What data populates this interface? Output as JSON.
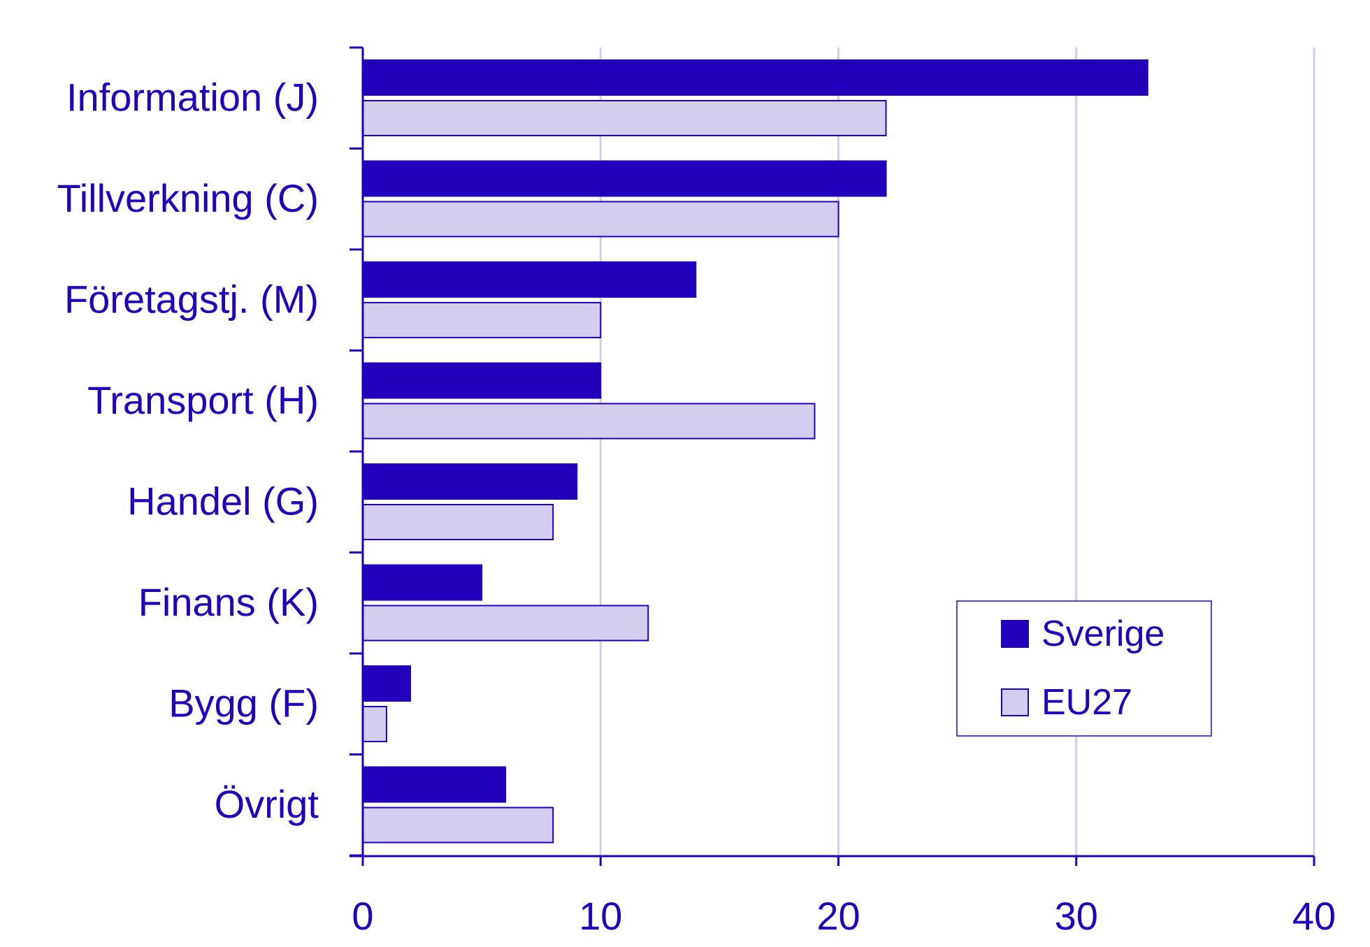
{
  "chart_data": {
    "type": "bar",
    "orientation": "horizontal",
    "categories": [
      "Information (J)",
      "Tillverkning (C)",
      "Företagstj. (M)",
      "Transport (H)",
      "Handel (G)",
      "Finans (K)",
      "Bygg (F)",
      "Övrigt"
    ],
    "series": [
      {
        "name": "Sverige",
        "values": [
          33,
          22,
          14,
          10,
          9,
          5,
          2,
          6
        ],
        "color": "#2200bb"
      },
      {
        "name": "EU27",
        "values": [
          22,
          20,
          10,
          19,
          8,
          12,
          1,
          8
        ],
        "color": "#d3ceef"
      }
    ],
    "xlim": [
      0,
      40
    ],
    "xticks": [
      "0",
      "10",
      "20",
      "30",
      "40"
    ],
    "grid": true,
    "legend_position": "bottom-right",
    "colors": {
      "text": "#2200bb",
      "axis": "#2200bb",
      "grid": "#d3ceef",
      "outline": "#2200bb"
    }
  }
}
